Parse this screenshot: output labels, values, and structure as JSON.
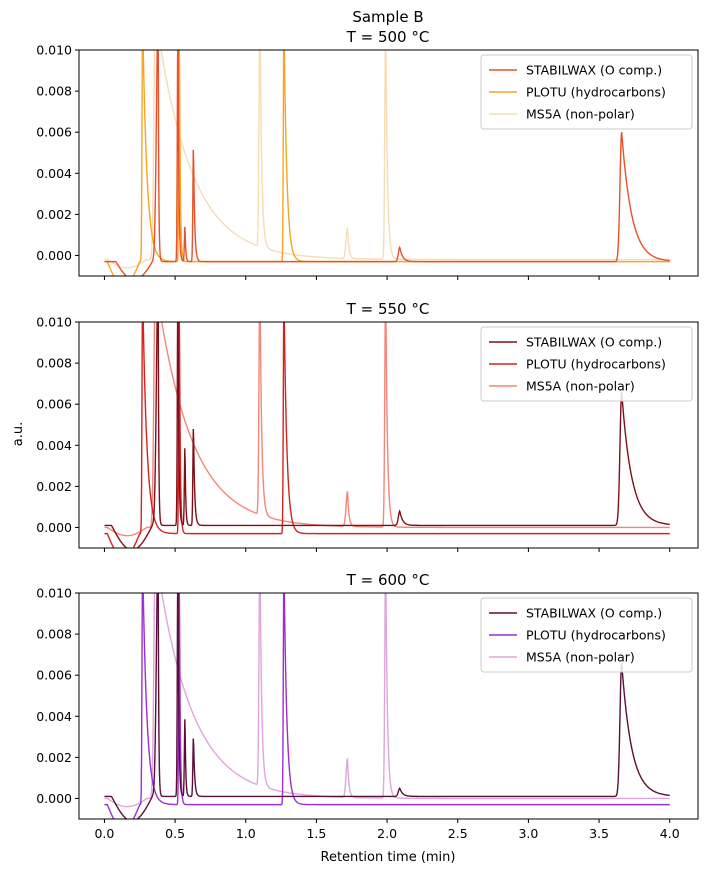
{
  "figure": {
    "suptitle": "Sample B",
    "xlabel": "Retention time (min)",
    "ylabel": "a.u.",
    "xlim": [
      -0.18,
      4.2
    ],
    "ylim": [
      -0.001,
      0.01
    ],
    "xticks": [
      "0.0",
      "0.5",
      "1.0",
      "1.5",
      "2.0",
      "2.5",
      "3.0",
      "3.5",
      "4.0"
    ],
    "xtick_values": [
      0.0,
      0.5,
      1.0,
      1.5,
      2.0,
      2.5,
      3.0,
      3.5,
      4.0
    ],
    "yticks": [
      "0.000",
      "0.002",
      "0.004",
      "0.006",
      "0.008",
      "0.010"
    ],
    "ytick_values": [
      0.0,
      0.002,
      0.004,
      0.006,
      0.008,
      0.01
    ]
  },
  "chart_data": [
    {
      "type": "line",
      "title": "T = 500 °C",
      "legend_position": "top-right",
      "series": [
        {
          "name": "STABILWAX (O comp.)",
          "color": "#e8512a",
          "baseline": -0.0003,
          "peaks": [
            [
              0.38,
              0.012,
              0.012,
              0.004
            ],
            [
              0.52,
              0.012,
              0.004,
              0.006
            ],
            [
              0.57,
              0.0018,
              0.004,
              0.005
            ],
            [
              0.63,
              0.0058,
              0.004,
              0.008
            ],
            [
              2.09,
              0.0007,
              0.01,
              0.02
            ],
            [
              3.66,
              0.0063,
              0.012,
              0.07
            ]
          ],
          "dip": [
            0.08,
            0.34,
            -0.0009
          ]
        },
        {
          "name": "PLOTU (hydrocarbons)",
          "color": "#f5a623",
          "baseline": -0.0003,
          "peaks": [
            [
              0.27,
              0.012,
              0.004,
              0.03
            ],
            [
              0.53,
              0.012,
              0.004,
              0.006
            ],
            [
              1.27,
              0.012,
              0.004,
              0.02
            ]
          ],
          "dip": [
            0.02,
            0.25,
            -0.0012
          ]
        },
        {
          "name": "MS5A (non-polar)",
          "color": "#f8dcb4",
          "baseline": -0.0002,
          "peaks": [
            [
              0.36,
              0.012,
              0.01,
              0.25
            ],
            [
              1.1,
              0.012,
              0.006,
              0.012
            ],
            [
              1.72,
              0.0015,
              0.01,
              0.01
            ],
            [
              1.99,
              0.012,
              0.006,
              0.012
            ]
          ],
          "dip": [
            0.02,
            0.3,
            -0.0004
          ]
        }
      ]
    },
    {
      "type": "line",
      "title": "T = 550 °C",
      "legend_position": "top-right",
      "series": [
        {
          "name": "STABILWAX (O comp.)",
          "color": "#800f1a",
          "baseline": 0.0001,
          "peaks": [
            [
              0.38,
              0.012,
              0.012,
              0.004
            ],
            [
              0.52,
              0.012,
              0.004,
              0.006
            ],
            [
              0.57,
              0.004,
              0.004,
              0.005
            ],
            [
              0.63,
              0.005,
              0.004,
              0.008
            ],
            [
              2.09,
              0.0007,
              0.01,
              0.02
            ],
            [
              3.66,
              0.0065,
              0.012,
              0.07
            ]
          ],
          "dip": [
            0.05,
            0.34,
            -0.0012
          ]
        },
        {
          "name": "PLOTU (hydrocarbons)",
          "color": "#d4231f",
          "baseline": -0.0003,
          "peaks": [
            [
              0.27,
              0.012,
              0.004,
              0.03
            ],
            [
              0.53,
              0.012,
              0.004,
              0.006
            ],
            [
              1.27,
              0.012,
              0.004,
              0.02
            ]
          ],
          "dip": [
            0.02,
            0.25,
            -0.0012
          ]
        },
        {
          "name": "MS5A (non-polar)",
          "color": "#f4867a",
          "baseline": 0.0,
          "peaks": [
            [
              0.36,
              0.012,
              0.01,
              0.25
            ],
            [
              1.1,
              0.012,
              0.006,
              0.012
            ],
            [
              1.72,
              0.0017,
              0.01,
              0.01
            ],
            [
              1.99,
              0.012,
              0.006,
              0.012
            ]
          ],
          "dip": [
            0.02,
            0.3,
            -0.0004
          ]
        }
      ]
    },
    {
      "type": "line",
      "title": "T = 600 °C",
      "legend_position": "top-right",
      "series": [
        {
          "name": "STABILWAX (O comp.)",
          "color": "#5a0f3a",
          "baseline": 0.0001,
          "peaks": [
            [
              0.38,
              0.012,
              0.012,
              0.004
            ],
            [
              0.52,
              0.012,
              0.004,
              0.006
            ],
            [
              0.57,
              0.004,
              0.004,
              0.005
            ],
            [
              0.63,
              0.003,
              0.004,
              0.008
            ],
            [
              2.09,
              0.0004,
              0.01,
              0.02
            ],
            [
              3.66,
              0.0065,
              0.012,
              0.07
            ]
          ],
          "dip": [
            0.05,
            0.34,
            -0.0012
          ]
        },
        {
          "name": "PLOTU (hydrocarbons)",
          "color": "#9b2fd0",
          "baseline": -0.0003,
          "peaks": [
            [
              0.27,
              0.012,
              0.004,
              0.03
            ],
            [
              0.53,
              0.012,
              0.004,
              0.006
            ],
            [
              1.27,
              0.012,
              0.004,
              0.02
            ]
          ],
          "dip": [
            0.02,
            0.25,
            -0.0012
          ]
        },
        {
          "name": "MS5A (non-polar)",
          "color": "#dea6dc",
          "baseline": 0.0,
          "peaks": [
            [
              0.36,
              0.012,
              0.01,
              0.25
            ],
            [
              1.1,
              0.012,
              0.006,
              0.012
            ],
            [
              1.72,
              0.0019,
              0.01,
              0.01
            ],
            [
              1.99,
              0.012,
              0.006,
              0.012
            ]
          ],
          "dip": [
            0.02,
            0.3,
            -0.0004
          ]
        }
      ]
    }
  ]
}
